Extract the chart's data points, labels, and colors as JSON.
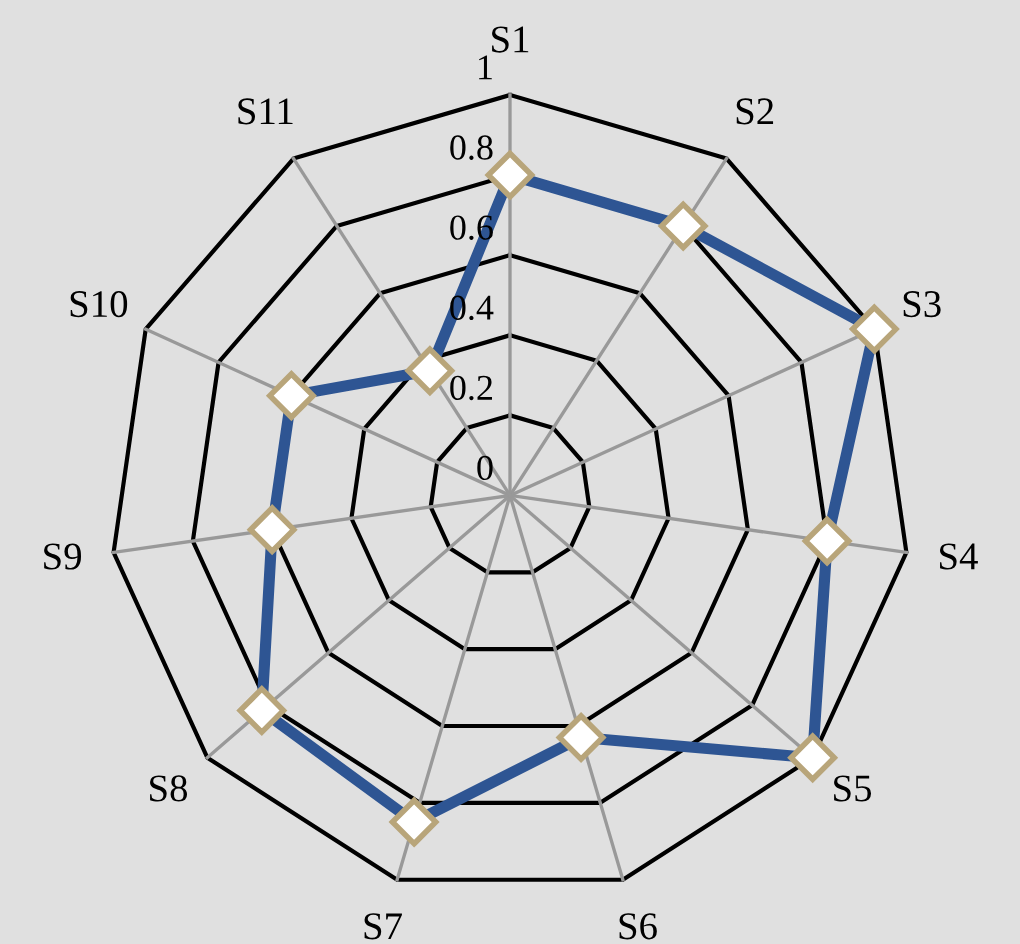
{
  "chart_data": {
    "type": "radar",
    "categories": [
      "S1",
      "S2",
      "S3",
      "S4",
      "S5",
      "S6",
      "S7",
      "S8",
      "S9",
      "S10",
      "S11"
    ],
    "series": [
      {
        "color": "#2e5593",
        "values": [
          0.8,
          0.8,
          1.0,
          0.8,
          1.0,
          0.63,
          0.85,
          0.82,
          0.6,
          0.6,
          0.37
        ]
      }
    ],
    "ylim": [
      0,
      1
    ],
    "yticks": [
      0,
      0.2,
      0.4,
      0.6,
      0.8,
      1
    ],
    "marker": "diamond",
    "grid": true
  }
}
